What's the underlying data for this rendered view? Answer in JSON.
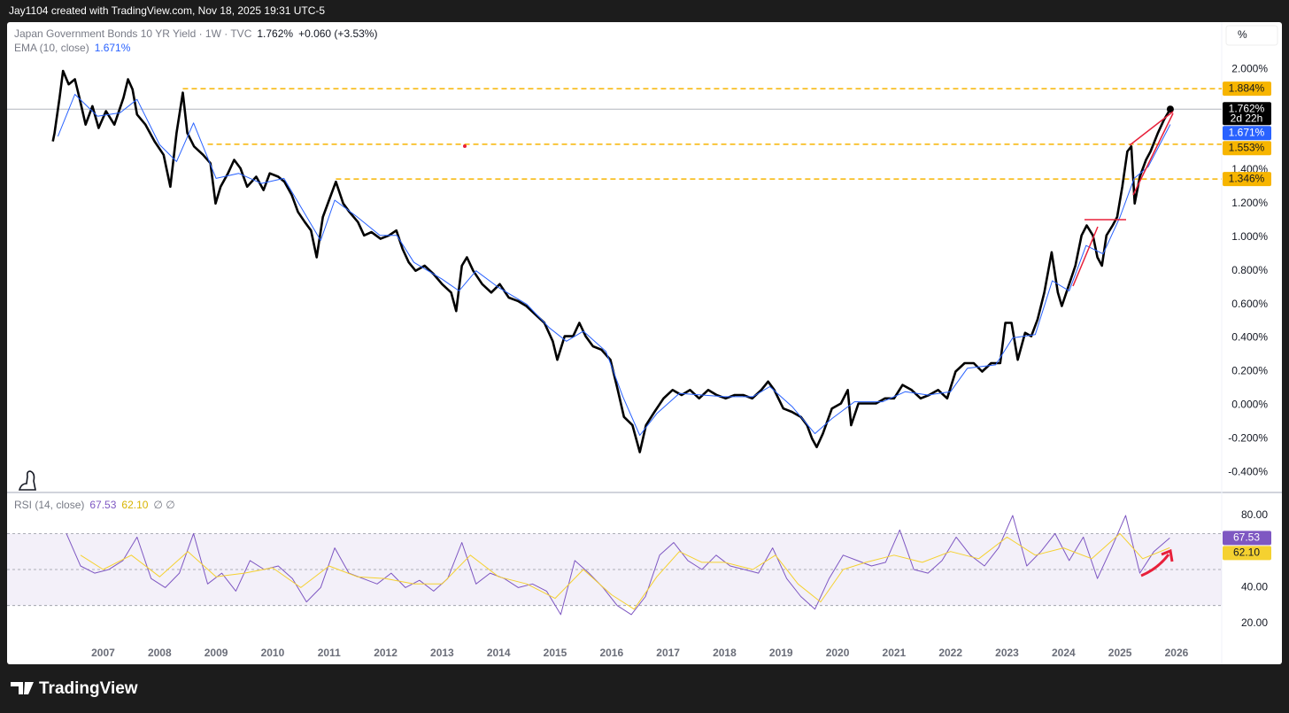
{
  "header": {
    "credit": "Jay1104 created with TradingView.com, Nov 18, 2025 19:31 UTC-5",
    "unit": "%"
  },
  "footer": {
    "brand": "TradingView"
  },
  "chart_data": [
    {
      "type": "line",
      "change": "+0.060 (+3.53%)",
      "countdown": "2d 22h",
      "xlim": [
        2005.3,
        2026.8
      ],
      "ylim": [
        -0.52,
        2.28
      ],
      "grid": false,
      "yticks": [
        {
          "value": 2.0,
          "label": "2.000%"
        },
        {
          "value": 1.4,
          "label": "1.400%"
        },
        {
          "value": 1.2,
          "label": "1.200%"
        },
        {
          "value": 1.0,
          "label": "1.000%"
        },
        {
          "value": 0.8,
          "label": "0.800%"
        },
        {
          "value": 0.6,
          "label": "0.600%"
        },
        {
          "value": 0.4,
          "label": "0.400%"
        },
        {
          "value": 0.2,
          "label": "0.200%"
        },
        {
          "value": 0,
          "label": "0.000%"
        },
        {
          "value": -0.2,
          "label": "-0.200%"
        },
        {
          "value": -0.4,
          "label": "-0.400%"
        }
      ],
      "levels": [
        {
          "value": 1.884,
          "label": "1.884%",
          "from": 2008.41,
          "color": "#f7b500"
        },
        {
          "value": 1.553,
          "label": "1.553%",
          "from": 2008.85,
          "color": "#f7b500"
        },
        {
          "value": 1.346,
          "label": "1.346%",
          "from": 2011.12,
          "color": "#f7b500"
        }
      ],
      "series": [
        {
          "name": "Japan Government Bonds 10 YR Yield · 1W · TVC",
          "color": "#000000",
          "legend_value": {
            "value": 1.762,
            "label": "1.762%"
          },
          "x": [
            2006.11,
            2006.14,
            2006.23,
            2006.29,
            2006.39,
            2006.5,
            2006.58,
            2006.69,
            2006.81,
            2006.92,
            2007.05,
            2007.2,
            2007.36,
            2007.44,
            2007.52,
            2007.6,
            2007.75,
            2007.91,
            2008.07,
            2008.19,
            2008.3,
            2008.41,
            2008.49,
            2008.61,
            2008.77,
            2008.9,
            2008.99,
            2009.08,
            2009.21,
            2009.32,
            2009.43,
            2009.55,
            2009.71,
            2009.84,
            2009.95,
            2010.1,
            2010.21,
            2010.34,
            2010.45,
            2010.57,
            2010.68,
            2010.78,
            2010.89,
            2011.0,
            2011.12,
            2011.25,
            2011.36,
            2011.51,
            2011.62,
            2011.75,
            2011.91,
            2012.06,
            2012.19,
            2012.3,
            2012.41,
            2012.53,
            2012.69,
            2012.85,
            2013.0,
            2013.16,
            2013.25,
            2013.35,
            2013.44,
            2013.55,
            2013.71,
            2013.87,
            2014.02,
            2014.18,
            2014.34,
            2014.49,
            2014.65,
            2014.81,
            2014.96,
            2015.04,
            2015.17,
            2015.32,
            2015.43,
            2015.54,
            2015.67,
            2015.82,
            2015.98,
            2016.11,
            2016.22,
            2016.37,
            2016.5,
            2016.61,
            2016.76,
            2016.92,
            2017.08,
            2017.24,
            2017.39,
            2017.55,
            2017.71,
            2017.86,
            2018.02,
            2018.18,
            2018.33,
            2018.49,
            2018.65,
            2018.77,
            2018.88,
            2019.04,
            2019.19,
            2019.35,
            2019.46,
            2019.55,
            2019.63,
            2019.74,
            2019.9,
            2020.06,
            2020.18,
            2020.24,
            2020.37,
            2020.53,
            2020.68,
            2020.84,
            2021.0,
            2021.15,
            2021.31,
            2021.47,
            2021.62,
            2021.78,
            2021.94,
            2022.09,
            2022.25,
            2022.41,
            2022.56,
            2022.72,
            2022.88,
            2022.97,
            2023.08,
            2023.19,
            2023.32,
            2023.43,
            2023.54,
            2023.66,
            2023.79,
            2023.9,
            2023.97,
            2024.1,
            2024.21,
            2024.32,
            2024.41,
            2024.52,
            2024.6,
            2024.68,
            2024.76,
            2024.87,
            2024.95,
            2025.04,
            2025.13,
            2025.2,
            2025.26,
            2025.35,
            2025.46,
            2025.54,
            2025.67,
            2025.78,
            2025.89
          ],
          "values": [
            1.57,
            1.62,
            1.83,
            1.99,
            1.91,
            1.94,
            1.83,
            1.67,
            1.78,
            1.65,
            1.75,
            1.67,
            1.83,
            1.94,
            1.88,
            1.73,
            1.67,
            1.57,
            1.49,
            1.3,
            1.62,
            1.86,
            1.62,
            1.54,
            1.49,
            1.44,
            1.2,
            1.3,
            1.38,
            1.46,
            1.41,
            1.3,
            1.36,
            1.28,
            1.38,
            1.36,
            1.33,
            1.25,
            1.15,
            1.09,
            1.04,
            0.88,
            1.12,
            1.22,
            1.33,
            1.2,
            1.15,
            1.09,
            1.01,
            1.03,
            0.99,
            1.01,
            1.04,
            0.93,
            0.85,
            0.8,
            0.83,
            0.78,
            0.72,
            0.67,
            0.56,
            0.83,
            0.88,
            0.8,
            0.72,
            0.67,
            0.72,
            0.64,
            0.62,
            0.59,
            0.54,
            0.49,
            0.38,
            0.27,
            0.41,
            0.41,
            0.49,
            0.41,
            0.35,
            0.33,
            0.27,
            0.09,
            -0.07,
            -0.12,
            -0.28,
            -0.12,
            -0.04,
            0.04,
            0.09,
            0.06,
            0.09,
            0.04,
            0.09,
            0.06,
            0.04,
            0.06,
            0.06,
            0.04,
            0.09,
            0.14,
            0.09,
            -0.02,
            -0.04,
            -0.07,
            -0.12,
            -0.2,
            -0.25,
            -0.17,
            -0.02,
            0.01,
            0.09,
            -0.12,
            0.01,
            0.01,
            0.01,
            0.04,
            0.04,
            0.12,
            0.09,
            0.04,
            0.06,
            0.09,
            0.04,
            0.2,
            0.25,
            0.25,
            0.2,
            0.25,
            0.25,
            0.49,
            0.49,
            0.27,
            0.43,
            0.41,
            0.51,
            0.67,
            0.91,
            0.67,
            0.59,
            0.72,
            0.83,
            1.01,
            1.07,
            1.01,
            0.88,
            0.83,
            1.01,
            1.07,
            1.12,
            1.3,
            1.51,
            1.54,
            1.2,
            1.36,
            1.46,
            1.51,
            1.62,
            1.7,
            1.762
          ]
        },
        {
          "name": "EMA (10, close)",
          "color": "#2962ff",
          "legend_value": {
            "value": 1.671,
            "label": "1.671%"
          },
          "x": [
            2006.2,
            2006.5,
            2006.9,
            2007.3,
            2007.6,
            2008.0,
            2008.3,
            2008.6,
            2009.0,
            2009.4,
            2009.8,
            2010.2,
            2010.5,
            2010.85,
            2011.1,
            2011.5,
            2011.9,
            2012.2,
            2012.5,
            2013.0,
            2013.3,
            2013.6,
            2014.0,
            2014.5,
            2014.9,
            2015.2,
            2015.5,
            2015.9,
            2016.2,
            2016.5,
            2016.8,
            2017.2,
            2017.6,
            2018.0,
            2018.5,
            2018.8,
            2019.2,
            2019.6,
            2019.9,
            2020.3,
            2020.8,
            2021.2,
            2021.6,
            2022.0,
            2022.3,
            2022.8,
            2023.1,
            2023.5,
            2023.8,
            2024.1,
            2024.4,
            2024.7,
            2025.0,
            2025.25,
            2025.5,
            2025.89
          ],
          "values": [
            1.6,
            1.85,
            1.72,
            1.74,
            1.82,
            1.55,
            1.45,
            1.68,
            1.35,
            1.38,
            1.32,
            1.35,
            1.18,
            0.98,
            1.22,
            1.12,
            1.01,
            1.01,
            0.85,
            0.75,
            0.68,
            0.8,
            0.7,
            0.6,
            0.46,
            0.38,
            0.44,
            0.32,
            0.05,
            -0.18,
            -0.05,
            0.07,
            0.06,
            0.05,
            0.05,
            0.11,
            -0.01,
            -0.17,
            -0.08,
            0.02,
            0.02,
            0.08,
            0.06,
            0.08,
            0.22,
            0.24,
            0.4,
            0.42,
            0.74,
            0.68,
            0.95,
            0.9,
            1.12,
            1.35,
            1.42,
            1.671
          ]
        }
      ]
    },
    {
      "type": "line",
      "title": "RSI (14, close)",
      "extras": "∅ ∅",
      "xlim": [
        2005.3,
        2026.8
      ],
      "ylim": [
        9.7,
        92.3
      ],
      "xticks": [
        2007,
        2008,
        2009,
        2010,
        2011,
        2012,
        2013,
        2014,
        2015,
        2016,
        2017,
        2018,
        2019,
        2020,
        2021,
        2022,
        2023,
        2024,
        2025,
        2026
      ],
      "yticks": [
        {
          "value": 80,
          "label": "80.00"
        },
        {
          "value": 40,
          "label": "40.00"
        },
        {
          "value": 20,
          "label": "20.00"
        }
      ],
      "bands": [
        70,
        50,
        30
      ],
      "band_color": "#7e57c2",
      "series": [
        {
          "name": "RSI (14, close)",
          "color": "#7e57c2",
          "legend_value": {
            "value": 67.53,
            "label": "67.53"
          },
          "x": [
            2006.35,
            2006.6,
            2006.85,
            2007.1,
            2007.35,
            2007.6,
            2007.85,
            2008.1,
            2008.35,
            2008.6,
            2008.85,
            2009.1,
            2009.35,
            2009.6,
            2009.85,
            2010.1,
            2010.35,
            2010.6,
            2010.85,
            2011.1,
            2011.35,
            2011.6,
            2011.85,
            2012.1,
            2012.35,
            2012.6,
            2012.85,
            2013.1,
            2013.35,
            2013.6,
            2013.85,
            2014.1,
            2014.35,
            2014.6,
            2014.85,
            2015.1,
            2015.35,
            2015.6,
            2015.85,
            2016.1,
            2016.35,
            2016.6,
            2016.85,
            2017.1,
            2017.35,
            2017.6,
            2017.85,
            2018.1,
            2018.35,
            2018.6,
            2018.85,
            2019.1,
            2019.35,
            2019.6,
            2019.85,
            2020.1,
            2020.35,
            2020.6,
            2020.85,
            2021.1,
            2021.35,
            2021.6,
            2021.85,
            2022.1,
            2022.35,
            2022.6,
            2022.85,
            2023.1,
            2023.35,
            2023.6,
            2023.85,
            2024.1,
            2024.35,
            2024.6,
            2024.85,
            2025.1,
            2025.35,
            2025.6,
            2025.88
          ],
          "values": [
            70,
            52,
            48,
            50,
            55,
            68,
            45,
            40,
            48,
            70,
            42,
            48,
            38,
            55,
            50,
            52,
            45,
            32,
            40,
            62,
            48,
            45,
            42,
            48,
            40,
            44,
            38,
            45,
            65,
            42,
            48,
            45,
            40,
            42,
            38,
            25,
            55,
            48,
            40,
            30,
            25,
            35,
            58,
            65,
            55,
            50,
            58,
            52,
            50,
            48,
            62,
            45,
            35,
            28,
            45,
            58,
            55,
            52,
            54,
            72,
            50,
            48,
            55,
            68,
            58,
            52,
            62,
            80,
            52,
            60,
            70,
            55,
            68,
            45,
            62,
            80,
            48,
            60,
            67.53
          ]
        },
        {
          "color": "#f5d130",
          "legend_value": {
            "value": 62.1,
            "label": "62.10"
          },
          "x": [
            2006.6,
            2007.0,
            2007.5,
            2008.0,
            2008.5,
            2009.0,
            2009.5,
            2010.0,
            2010.5,
            2011.0,
            2011.5,
            2012.0,
            2012.5,
            2013.0,
            2013.5,
            2014.0,
            2014.5,
            2015.0,
            2015.5,
            2016.0,
            2016.4,
            2016.8,
            2017.2,
            2017.6,
            2018.0,
            2018.5,
            2018.9,
            2019.3,
            2019.7,
            2020.1,
            2020.5,
            2021.0,
            2021.5,
            2022.0,
            2022.5,
            2023.0,
            2023.5,
            2024.0,
            2024.5,
            2025.0,
            2025.4,
            2025.88
          ],
          "values": [
            58,
            50,
            58,
            46,
            60,
            46,
            48,
            51,
            40,
            52,
            46,
            45,
            42,
            42,
            58,
            46,
            42,
            34,
            50,
            36,
            28,
            46,
            60,
            54,
            54,
            50,
            58,
            42,
            32,
            50,
            54,
            58,
            54,
            60,
            56,
            68,
            58,
            62,
            56,
            70,
            56,
            62.1
          ]
        }
      ]
    }
  ]
}
